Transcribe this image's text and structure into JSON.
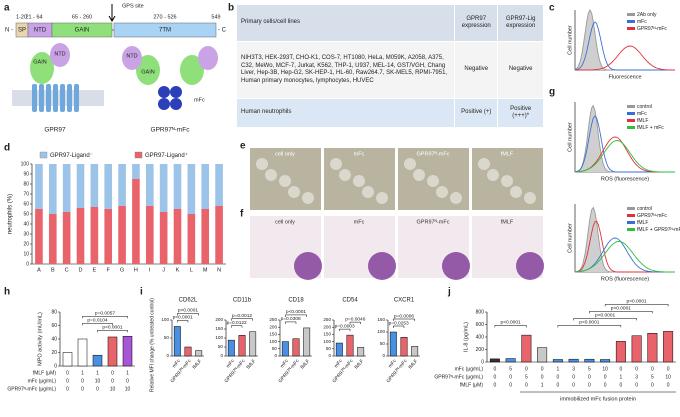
{
  "panel_labels": [
    "a",
    "b",
    "c",
    "d",
    "e",
    "f",
    "g",
    "h",
    "i",
    "j"
  ],
  "panel_a": {
    "ranges": [
      "1-20",
      "21 - 64",
      "65 - 260",
      "270 - 526",
      "549"
    ],
    "gps": "GPS site",
    "n_term": "N -",
    "c_term": "- C",
    "domains": [
      "SP",
      "NTD",
      "GAIN",
      "7TM"
    ],
    "left_labels": [
      "GAIN",
      "NTD"
    ],
    "left_name": "GPR97",
    "right_labels": [
      "GAIN",
      "NTD",
      "mFc"
    ],
    "right_name": "GPR97ᴺ-mFc"
  },
  "panel_b": {
    "header": [
      "Primary cells/cell lines",
      "GPR97 expression",
      "GPR97-Lig expression"
    ],
    "rows": [
      [
        "NIH3T3, HEK-293T, CHO-K1, COS-7, HT1080, HeLa, M059K, A2058, A375, C32, MeWo, MCF-7, Jurkat, K562, THP-1, U937, MEL-14, GST/VGH, Chang Liver, Hep-3B, Hep-G2, SK-HEP-1, HL-60, Raw264.7, SK-MEL5, RPMI-7951, Human primary monocytes, lymphocytes, HUVEC",
        "Negative",
        "Negative"
      ],
      [
        "Human neutrophils",
        "Positive (+)",
        "Positive (+++)*"
      ]
    ]
  },
  "panel_c": {
    "legend": [
      "2Ab only",
      "mFc",
      "GPR97ᴺ-mFc"
    ],
    "colors": [
      "#9a9a9a",
      "#3a6fd8",
      "#e0303a"
    ],
    "ylabel": "Cell number",
    "xlabel": "Fluorescence"
  },
  "panel_e": {
    "labels": [
      "cell only",
      "mFc",
      "GPR97ᴺ-mFc",
      "fMLF"
    ]
  },
  "panel_f": {
    "labels": [
      "cell only",
      "mFc",
      "GPR97ᴺ-mFc",
      "fMLF"
    ]
  },
  "panel_g": {
    "top_legend": [
      "control",
      "mFc",
      "fMLF",
      "fMLF + mFc"
    ],
    "top_colors": [
      "#9a9a9a",
      "#3a6fd8",
      "#e0303a",
      "#2fbf3a"
    ],
    "bottom_legend": [
      "control",
      "GPR97ᴺ-mFc",
      "fMLF",
      "fMLF + GPR97ᴺ-mFc"
    ],
    "bottom_colors": [
      "#9a9a9a",
      "#e0303a",
      "#3a6fd8",
      "#2fbf3a"
    ],
    "ylabel": "Cell number",
    "xlabel": "ROS (fluorescence)"
  },
  "chart_data": [
    {
      "type": "bar",
      "stacked": true,
      "categories": [
        "A",
        "B",
        "C",
        "D",
        "E",
        "F",
        "G",
        "H",
        "I",
        "J",
        "K",
        "L",
        "M",
        "N"
      ],
      "series": [
        {
          "name": "GPR97-Ligand⁺",
          "color": "#e8646a",
          "values": [
            55,
            50,
            52,
            56,
            57,
            55,
            58,
            85,
            58,
            52,
            55,
            50,
            55,
            58
          ]
        },
        {
          "name": "GPR97-Ligand⁻",
          "color": "#9cc3e8",
          "values": [
            45,
            50,
            48,
            44,
            43,
            45,
            42,
            15,
            42,
            48,
            45,
            50,
            45,
            42
          ]
        }
      ],
      "ylabel": "neutrophils (%)",
      "ylim": [
        0,
        100
      ],
      "yticks": [
        0,
        10,
        20,
        30,
        40,
        50,
        60,
        70,
        80,
        90,
        100
      ]
    },
    {
      "type": "bar",
      "values": [
        20,
        40,
        16,
        43,
        44
      ],
      "colors": [
        "#ffffff",
        "#ffffff",
        "#4a90e2",
        "#e8646a",
        "#a855d6"
      ],
      "ylabel": "MPO activity (mU/mL)",
      "ylim": [
        0,
        80
      ],
      "yticks": [
        0,
        20,
        40,
        60,
        80
      ],
      "annotations": [
        "p=0.0057",
        "p=0.0104",
        "p<0.0001"
      ],
      "conditions": [
        {
          "label": "fMLF (μM)",
          "values": [
            0,
            1,
            1,
            0,
            1
          ]
        },
        {
          "label": "mFc (μg/mL)",
          "values": [
            0,
            0,
            10,
            0,
            0
          ]
        },
        {
          "label": "GPR97ᴺ-mFc (μg/mL)",
          "values": [
            0,
            0,
            0,
            10,
            10
          ]
        }
      ]
    },
    {
      "type": "bar",
      "title": "CD62L",
      "ylabel": "Relative MFI change (% untreated control)",
      "categories": [
        "mFc",
        "GPR97ᴺ-mFc",
        "fMLF"
      ],
      "values": [
        82,
        25,
        15
      ],
      "colors": [
        "#4a90e2",
        "#e8646a",
        "#c8c8c8"
      ],
      "ylim": [
        0,
        100
      ],
      "yticks": [
        0,
        50,
        100
      ],
      "annotations": [
        "p<0.0001",
        "p<0.0001"
      ]
    },
    {
      "type": "bar",
      "title": "CD11b",
      "categories": [
        "mFc",
        "GPR97ᴺ-mFc",
        "fMLF"
      ],
      "values": [
        88,
        115,
        135
      ],
      "colors": [
        "#4a90e2",
        "#e8646a",
        "#c8c8c8"
      ],
      "ylim": [
        0,
        200
      ],
      "yticks": [
        0,
        50,
        100,
        150,
        200
      ],
      "annotations": [
        "p=0.0012",
        "p=0.0122"
      ]
    },
    {
      "type": "bar",
      "title": "CD18",
      "categories": [
        "mFc",
        "GPR97ᴺ-mFc",
        "fMLF"
      ],
      "values": [
        100,
        120,
        195
      ],
      "colors": [
        "#4a90e2",
        "#e8646a",
        "#c8c8c8"
      ],
      "ylim": [
        0,
        250
      ],
      "yticks": [
        0,
        50,
        100,
        150,
        200,
        250
      ],
      "annotations": [
        "p<0.0001",
        "p=0.0308"
      ]
    },
    {
      "type": "bar",
      "title": "CD54",
      "categories": [
        "mFc",
        "GPR97ᴺ-mFc",
        "fMLF"
      ],
      "values": [
        90,
        145,
        60
      ],
      "colors": [
        "#4a90e2",
        "#e8646a",
        "#c8c8c8"
      ],
      "ylim": [
        0,
        250
      ],
      "yticks": [
        0,
        50,
        100,
        150,
        200,
        250
      ],
      "annotations": [
        "p=0.0046",
        "p=0.0003"
      ]
    },
    {
      "type": "bar",
      "title": "CXCR1",
      "categories": [
        "mFc",
        "GPR97ᴺ-mFc",
        "fMLF"
      ],
      "values": [
        100,
        78,
        40
      ],
      "colors": [
        "#4a90e2",
        "#e8646a",
        "#c8c8c8"
      ],
      "ylim": [
        0,
        150
      ],
      "yticks": [
        0,
        50,
        100,
        150
      ],
      "annotations": [
        "p=0.0006",
        "p=0.0253"
      ]
    },
    {
      "type": "bar",
      "values": [
        50,
        55,
        430,
        230,
        40,
        45,
        45,
        40,
        330,
        420,
        460,
        490
      ],
      "colors": [
        "#333333",
        "#4a90e2",
        "#e8646a",
        "#c8c8c8",
        "#4a90e2",
        "#4a90e2",
        "#4a90e2",
        "#4a90e2",
        "#e8646a",
        "#e8646a",
        "#e8646a",
        "#e8646a"
      ],
      "ylabel": "IL-8 (pg/mL)",
      "ylim": [
        0,
        800
      ],
      "yticks": [
        0,
        200,
        400,
        600,
        800
      ],
      "annotations": [
        "p<0.0001",
        "p<0.0001",
        "p<0.0001",
        "p<0.0001",
        "p<0.0001"
      ],
      "conditions": [
        {
          "label": "mFc (μg/mL)",
          "values": [
            0,
            5,
            0,
            0,
            1,
            3,
            5,
            10,
            0,
            0,
            0,
            0
          ]
        },
        {
          "label": "GPR97ᴺ-mFc (μg/mL)",
          "values": [
            0,
            0,
            5,
            0,
            0,
            0,
            0,
            0,
            1,
            3,
            5,
            10
          ]
        },
        {
          "label": "fMLF (μM)",
          "values": [
            0,
            0,
            0,
            1,
            0,
            0,
            0,
            0,
            0,
            0,
            0,
            0
          ]
        }
      ],
      "xlabel": "immobilized mFc fusion protein"
    }
  ]
}
